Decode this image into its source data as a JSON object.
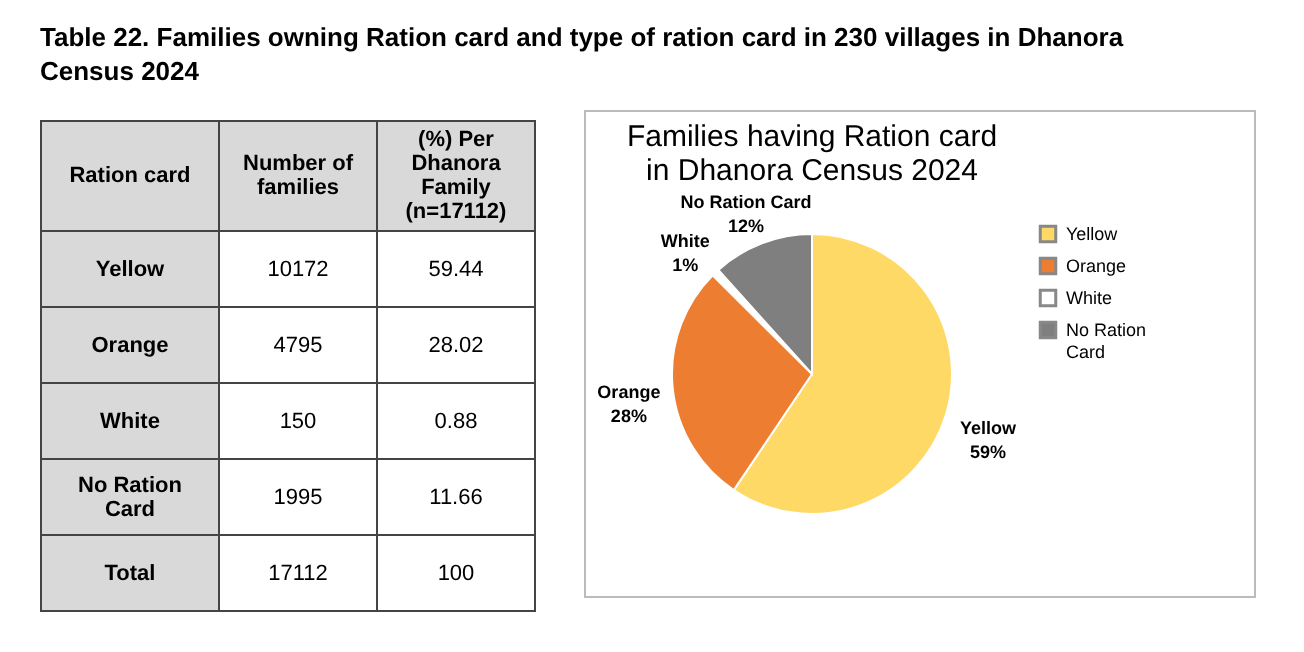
{
  "chart_data": [
    {
      "type": "other",
      "data_labels": true,
      "title": "Table 22. Families owning Ration card and type of ration card in 230 villages in Dhanora Census 2024",
      "legend_title": "Ration card",
      "categories": [
        "Yellow",
        "Orange",
        "White",
        "No Ration Card",
        "Total"
      ],
      "series": [
        {
          "name": "Number of families",
          "values": [
            10172,
            4795,
            150,
            1995,
            17112
          ]
        },
        {
          "name": "(%) Per Dhanora Family (n=17112)",
          "values": [
            59.44,
            28.02,
            0.88,
            11.66,
            100
          ]
        }
      ]
    },
    {
      "type": "pie",
      "title": "Families having Ration card in Dhanora Census 2024",
      "categories": [
        "Yellow",
        "Orange",
        "White",
        "No Ration Card"
      ],
      "values": [
        59.44,
        28.02,
        0.88,
        11.66
      ],
      "colors": [
        "#ffd966",
        "#ed7d31",
        "#ffffff",
        "#7f7f7f"
      ],
      "value_labels": [
        "59%",
        "28%",
        "1%",
        "12%"
      ],
      "legend": "right"
    }
  ]
}
